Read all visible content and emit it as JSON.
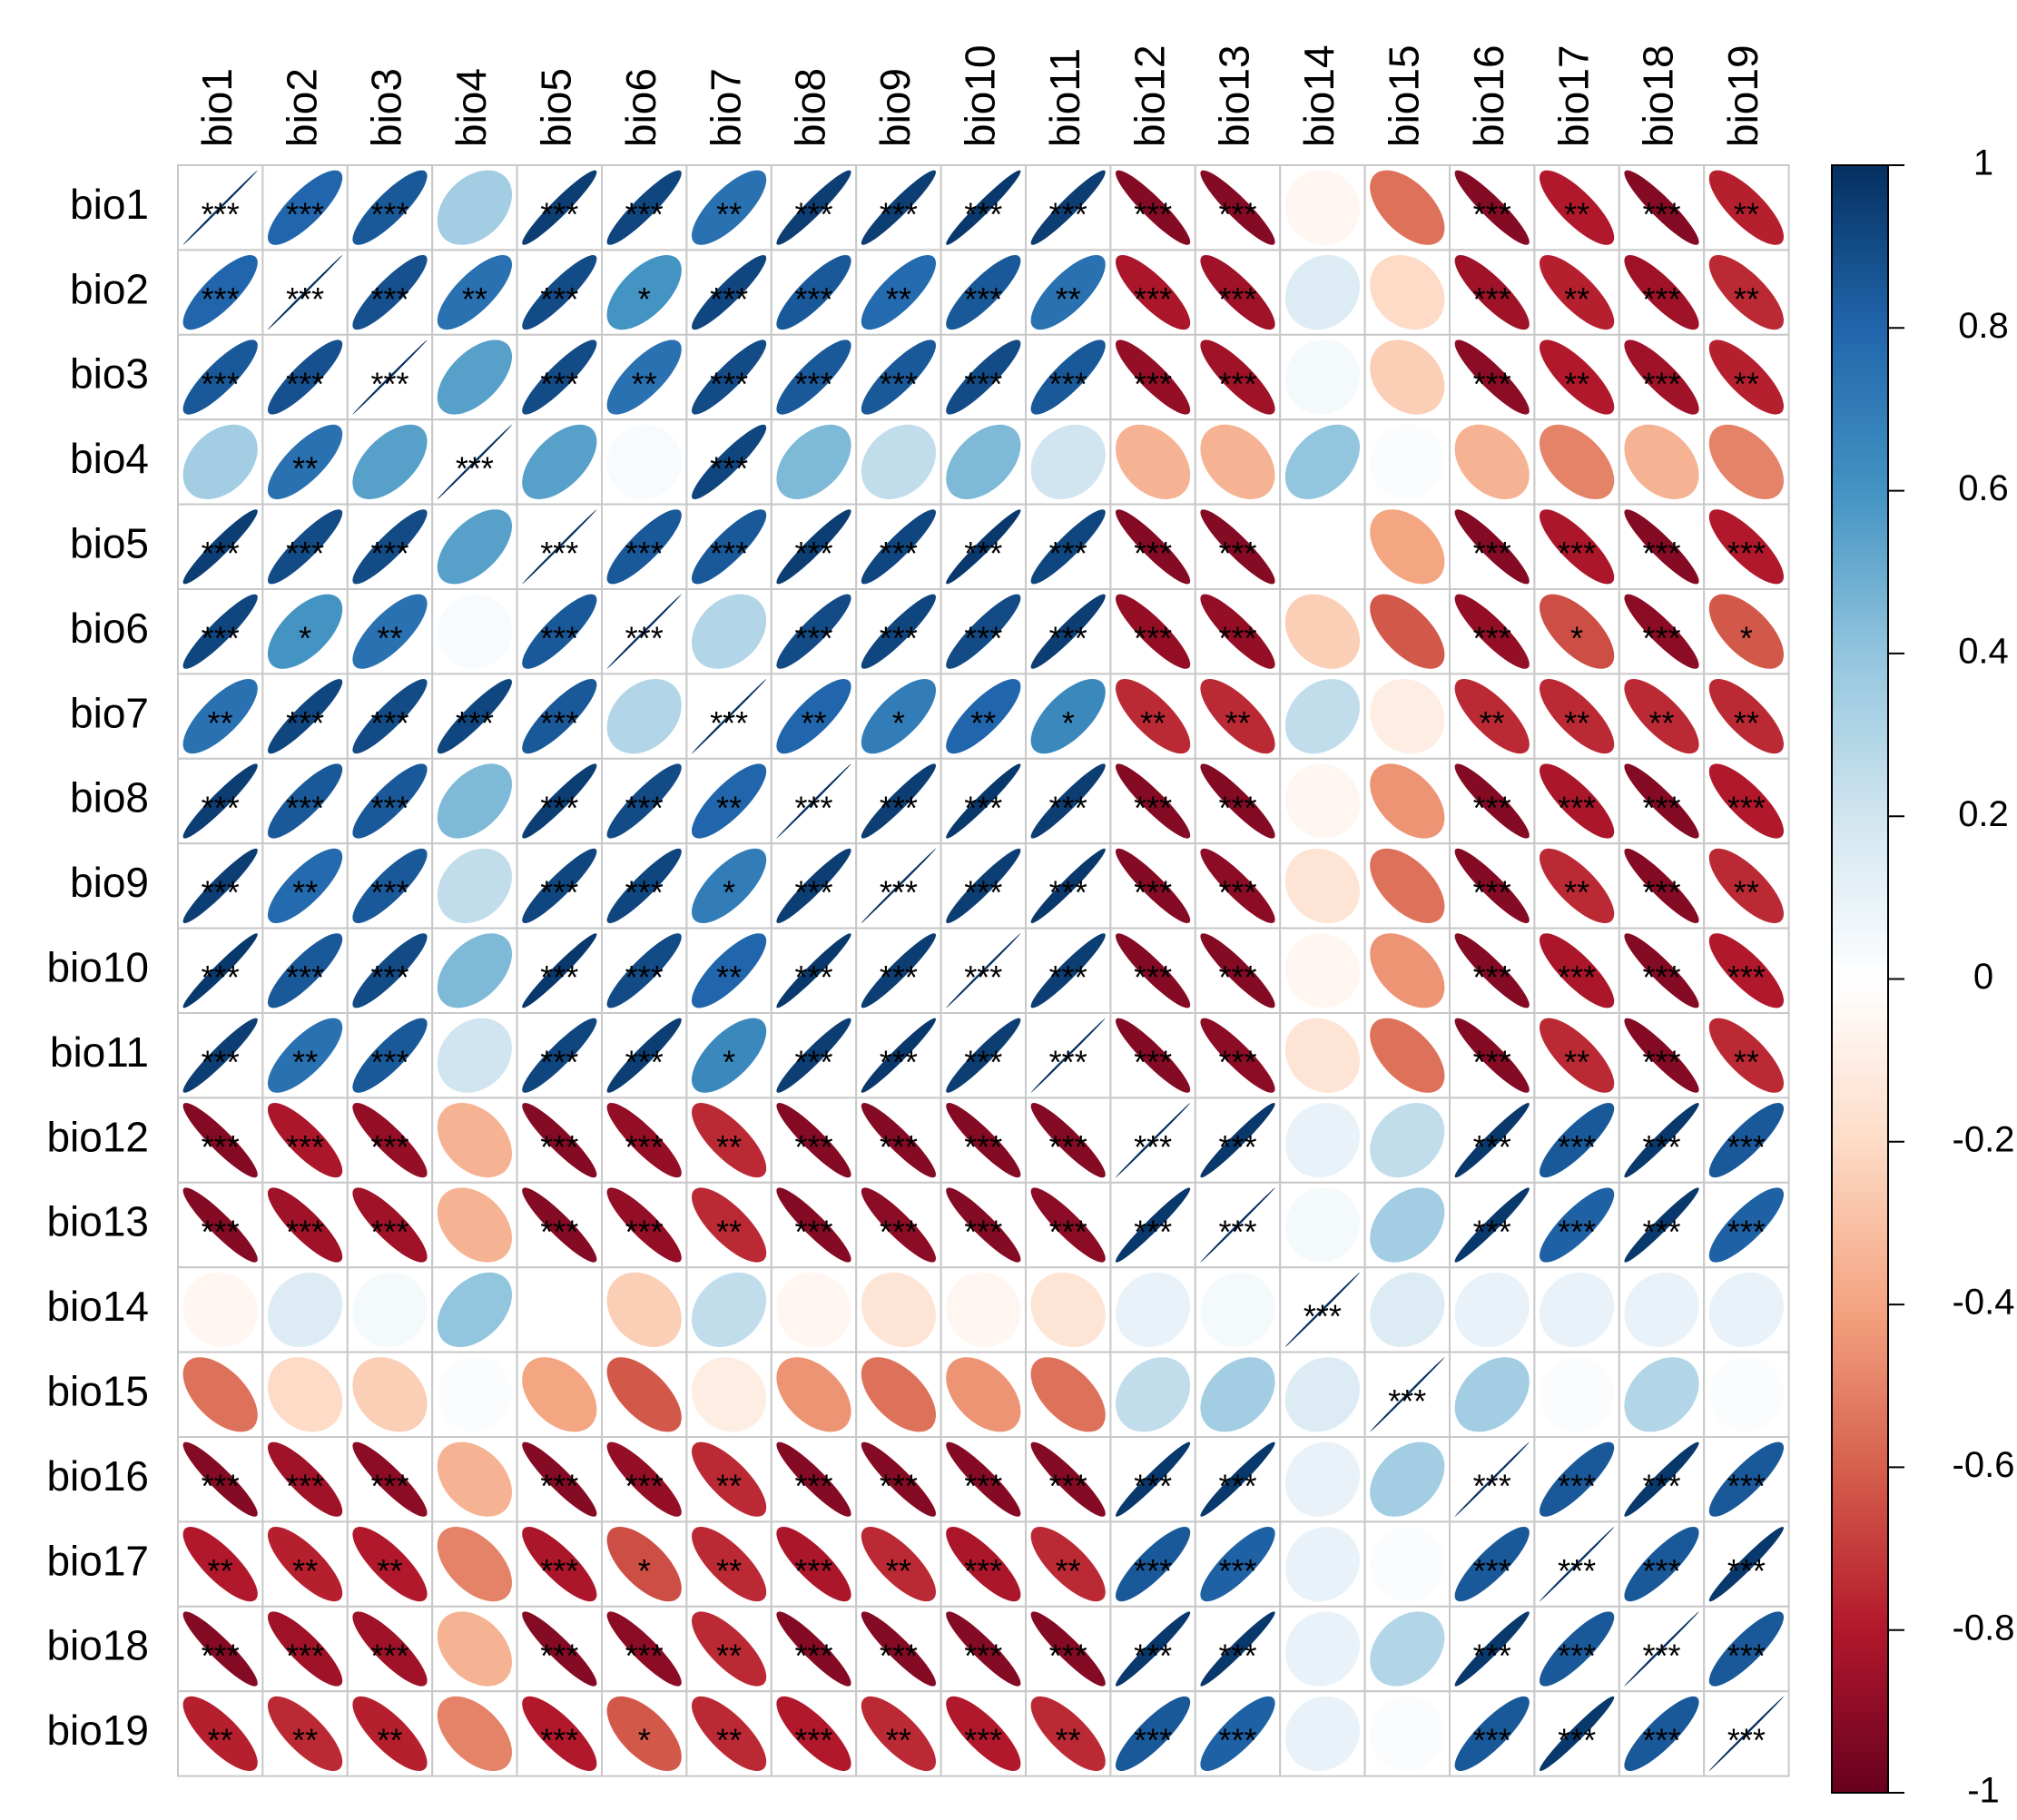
{
  "chart_data": {
    "type": "heatmap",
    "subtype": "correlation-ellipse",
    "variables": [
      "bio1",
      "bio2",
      "bio3",
      "bio4",
      "bio5",
      "bio6",
      "bio7",
      "bio8",
      "bio9",
      "bio10",
      "bio11",
      "bio12",
      "bio13",
      "bio14",
      "bio15",
      "bio16",
      "bio17",
      "bio18",
      "bio19"
    ],
    "values": [
      [
        1.0,
        0.8,
        0.85,
        0.35,
        0.95,
        0.92,
        0.75,
        0.95,
        0.95,
        0.97,
        0.95,
        -0.92,
        -0.92,
        -0.05,
        -0.55,
        -0.92,
        -0.8,
        -0.92,
        -0.78
      ],
      [
        0.8,
        1.0,
        0.88,
        0.75,
        0.9,
        0.6,
        0.92,
        0.85,
        0.78,
        0.85,
        0.75,
        -0.82,
        -0.85,
        0.15,
        -0.2,
        -0.85,
        -0.78,
        -0.85,
        -0.75
      ],
      [
        0.85,
        0.88,
        1.0,
        0.55,
        0.9,
        0.75,
        0.9,
        0.85,
        0.85,
        0.9,
        0.85,
        -0.88,
        -0.85,
        0.05,
        -0.25,
        -0.9,
        -0.8,
        -0.85,
        -0.78
      ],
      [
        0.35,
        0.75,
        0.55,
        1.0,
        0.55,
        0.03,
        0.92,
        0.45,
        0.25,
        0.45,
        0.2,
        -0.35,
        -0.35,
        0.4,
        0.02,
        -0.35,
        -0.5,
        -0.35,
        -0.5
      ],
      [
        0.95,
        0.9,
        0.9,
        0.55,
        1.0,
        0.85,
        0.85,
        0.95,
        0.92,
        0.97,
        0.92,
        -0.92,
        -0.92,
        0.0,
        -0.4,
        -0.92,
        -0.82,
        -0.92,
        -0.8
      ],
      [
        0.92,
        0.6,
        0.75,
        0.03,
        0.85,
        1.0,
        0.3,
        0.9,
        0.92,
        0.9,
        0.95,
        -0.88,
        -0.88,
        -0.25,
        -0.62,
        -0.88,
        -0.65,
        -0.9,
        -0.62
      ],
      [
        0.75,
        0.92,
        0.9,
        0.92,
        0.85,
        0.3,
        1.0,
        0.8,
        0.7,
        0.8,
        0.65,
        -0.75,
        -0.75,
        0.25,
        -0.1,
        -0.75,
        -0.75,
        -0.75,
        -0.75
      ],
      [
        0.95,
        0.85,
        0.85,
        0.45,
        0.95,
        0.9,
        0.8,
        1.0,
        0.95,
        0.97,
        0.95,
        -0.92,
        -0.92,
        -0.05,
        -0.45,
        -0.92,
        -0.82,
        -0.92,
        -0.8
      ],
      [
        0.95,
        0.78,
        0.85,
        0.25,
        0.92,
        0.92,
        0.7,
        0.95,
        1.0,
        0.95,
        0.97,
        -0.92,
        -0.9,
        -0.15,
        -0.55,
        -0.92,
        -0.75,
        -0.92,
        -0.75
      ],
      [
        0.97,
        0.85,
        0.9,
        0.45,
        0.97,
        0.9,
        0.8,
        0.97,
        0.95,
        1.0,
        0.95,
        -0.92,
        -0.92,
        -0.05,
        -0.45,
        -0.92,
        -0.82,
        -0.92,
        -0.8
      ],
      [
        0.95,
        0.75,
        0.85,
        0.2,
        0.92,
        0.95,
        0.65,
        0.95,
        0.97,
        0.95,
        1.0,
        -0.92,
        -0.9,
        -0.15,
        -0.55,
        -0.92,
        -0.75,
        -0.92,
        -0.75
      ],
      [
        -0.92,
        -0.82,
        -0.88,
        -0.35,
        -0.92,
        -0.88,
        -0.75,
        -0.92,
        -0.92,
        -0.92,
        -0.92,
        1.0,
        0.97,
        0.1,
        0.25,
        0.97,
        0.85,
        0.97,
        0.85
      ],
      [
        -0.92,
        -0.85,
        -0.85,
        -0.35,
        -0.92,
        -0.88,
        -0.75,
        -0.92,
        -0.9,
        -0.92,
        -0.9,
        0.97,
        1.0,
        0.05,
        0.35,
        0.97,
        0.82,
        0.97,
        0.82
      ],
      [
        -0.05,
        0.15,
        0.05,
        0.4,
        0.0,
        -0.25,
        0.25,
        -0.05,
        -0.15,
        -0.05,
        -0.15,
        0.1,
        0.05,
        1.0,
        0.15,
        0.1,
        0.1,
        0.1,
        0.1
      ],
      [
        -0.55,
        -0.2,
        -0.25,
        0.02,
        -0.4,
        -0.62,
        -0.1,
        -0.45,
        -0.55,
        -0.45,
        -0.55,
        0.25,
        0.35,
        0.15,
        1.0,
        0.35,
        0.02,
        0.3,
        0.02
      ],
      [
        -0.92,
        -0.85,
        -0.9,
        -0.35,
        -0.92,
        -0.88,
        -0.75,
        -0.92,
        -0.92,
        -0.92,
        -0.92,
        0.97,
        0.97,
        0.1,
        0.35,
        1.0,
        0.85,
        0.97,
        0.85
      ],
      [
        -0.8,
        -0.78,
        -0.8,
        -0.5,
        -0.82,
        -0.65,
        -0.75,
        -0.82,
        -0.75,
        -0.82,
        -0.75,
        0.85,
        0.82,
        0.1,
        0.02,
        0.85,
        1.0,
        0.85,
        0.97
      ],
      [
        -0.92,
        -0.85,
        -0.85,
        -0.35,
        -0.92,
        -0.9,
        -0.75,
        -0.92,
        -0.92,
        -0.92,
        -0.92,
        0.97,
        0.97,
        0.1,
        0.3,
        0.97,
        0.85,
        1.0,
        0.85
      ],
      [
        -0.78,
        -0.75,
        -0.78,
        -0.5,
        -0.8,
        -0.62,
        -0.75,
        -0.8,
        -0.75,
        -0.8,
        -0.75,
        0.85,
        0.82,
        0.1,
        0.02,
        0.85,
        0.97,
        0.85,
        1.0
      ]
    ],
    "significance": [
      [
        "***",
        "***",
        "***",
        "",
        "***",
        "***",
        "**",
        "***",
        "***",
        "***",
        "***",
        "***",
        "***",
        "",
        "",
        "***",
        "**",
        "***",
        "**"
      ],
      [
        "***",
        "***",
        "***",
        "**",
        "***",
        "*",
        "***",
        "***",
        "**",
        "***",
        "**",
        "***",
        "***",
        "",
        "",
        "***",
        "**",
        "***",
        "**"
      ],
      [
        "***",
        "***",
        "***",
        "",
        "***",
        "**",
        "***",
        "***",
        "***",
        "***",
        "***",
        "***",
        "***",
        "",
        "",
        "***",
        "**",
        "***",
        "**"
      ],
      [
        "",
        "**",
        "",
        "***",
        "",
        "",
        "***",
        "",
        "",
        "",
        "",
        "",
        "",
        "",
        "",
        "",
        "",
        "",
        ""
      ],
      [
        "***",
        "***",
        "***",
        "",
        "***",
        "***",
        "***",
        "***",
        "***",
        "***",
        "***",
        "***",
        "***",
        "",
        "",
        "***",
        "***",
        "***",
        "***"
      ],
      [
        "***",
        "*",
        "**",
        "",
        "***",
        "***",
        "",
        "***",
        "***",
        "***",
        "***",
        "***",
        "***",
        "",
        "",
        "***",
        "*",
        "***",
        "*"
      ],
      [
        "**",
        "***",
        "***",
        "***",
        "***",
        "",
        "***",
        "**",
        "*",
        "**",
        "*",
        "**",
        "**",
        "",
        "",
        "**",
        "**",
        "**",
        "**"
      ],
      [
        "***",
        "***",
        "***",
        "",
        "***",
        "***",
        "**",
        "***",
        "***",
        "***",
        "***",
        "***",
        "***",
        "",
        "",
        "***",
        "***",
        "***",
        "***"
      ],
      [
        "***",
        "**",
        "***",
        "",
        "***",
        "***",
        "*",
        "***",
        "***",
        "***",
        "***",
        "***",
        "***",
        "",
        "",
        "***",
        "**",
        "***",
        "**"
      ],
      [
        "***",
        "***",
        "***",
        "",
        "***",
        "***",
        "**",
        "***",
        "***",
        "***",
        "***",
        "***",
        "***",
        "",
        "",
        "***",
        "***",
        "***",
        "***"
      ],
      [
        "***",
        "**",
        "***",
        "",
        "***",
        "***",
        "*",
        "***",
        "***",
        "***",
        "***",
        "***",
        "***",
        "",
        "",
        "***",
        "**",
        "***",
        "**"
      ],
      [
        "***",
        "***",
        "***",
        "",
        "***",
        "***",
        "**",
        "***",
        "***",
        "***",
        "***",
        "***",
        "***",
        "",
        "",
        "***",
        "***",
        "***",
        "***"
      ],
      [
        "***",
        "***",
        "***",
        "",
        "***",
        "***",
        "**",
        "***",
        "***",
        "***",
        "***",
        "***",
        "***",
        "",
        "",
        "***",
        "***",
        "***",
        "***"
      ],
      [
        "",
        "",
        "",
        "",
        "",
        "",
        "",
        "",
        "",
        "",
        "",
        "",
        "",
        "***",
        "",
        "",
        "",
        "",
        ""
      ],
      [
        "",
        "",
        "",
        "",
        "",
        "",
        "",
        "",
        "",
        "",
        "",
        "",
        "",
        "",
        "***",
        "",
        "",
        "",
        ""
      ],
      [
        "***",
        "***",
        "***",
        "",
        "***",
        "***",
        "**",
        "***",
        "***",
        "***",
        "***",
        "***",
        "***",
        "",
        "",
        "***",
        "***",
        "***",
        "***"
      ],
      [
        "**",
        "**",
        "**",
        "",
        "***",
        "*",
        "**",
        "***",
        "**",
        "***",
        "**",
        "***",
        "***",
        "",
        "",
        "***",
        "***",
        "***",
        "***"
      ],
      [
        "***",
        "***",
        "***",
        "",
        "***",
        "***",
        "**",
        "***",
        "***",
        "***",
        "***",
        "***",
        "***",
        "",
        "",
        "***",
        "***",
        "***",
        "***"
      ],
      [
        "**",
        "**",
        "**",
        "",
        "***",
        "*",
        "**",
        "***",
        "**",
        "***",
        "**",
        "***",
        "***",
        "",
        "",
        "***",
        "***",
        "***",
        "***"
      ]
    ],
    "color_scale": {
      "range": [
        -1,
        1
      ],
      "ticks": [
        "1",
        "0.8",
        "0.6",
        "0.4",
        "0.2",
        "0",
        "-0.2",
        "-0.4",
        "-0.6",
        "-0.8",
        "-1"
      ],
      "colors": [
        "#67001F",
        "#B2182B",
        "#D6604D",
        "#F4A582",
        "#FDDBC7",
        "#FFFFFF",
        "#D1E5F0",
        "#92C5DE",
        "#4393C3",
        "#2166AC",
        "#053061"
      ]
    },
    "legend": "right"
  }
}
